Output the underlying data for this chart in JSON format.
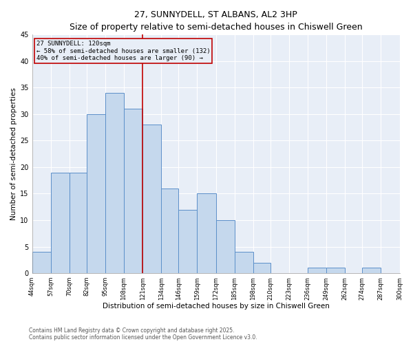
{
  "title": "27, SUNNYDELL, ST ALBANS, AL2 3HP",
  "subtitle": "Size of property relative to semi-detached houses in Chiswell Green",
  "xlabel": "Distribution of semi-detached houses by size in Chiswell Green",
  "ylabel": "Number of semi-detached properties",
  "bar_edges": [
    44,
    57,
    70,
    82,
    95,
    108,
    121,
    134,
    146,
    159,
    172,
    185,
    198,
    210,
    223,
    236,
    249,
    262,
    274,
    287,
    300
  ],
  "bar_heights": [
    4,
    19,
    19,
    30,
    34,
    31,
    28,
    16,
    12,
    15,
    10,
    4,
    2,
    0,
    0,
    1,
    1,
    0,
    1,
    0
  ],
  "tick_labels": [
    "44sqm",
    "57sqm",
    "70sqm",
    "82sqm",
    "95sqm",
    "108sqm",
    "121sqm",
    "134sqm",
    "146sqm",
    "159sqm",
    "172sqm",
    "185sqm",
    "198sqm",
    "210sqm",
    "223sqm",
    "236sqm",
    "249sqm",
    "262sqm",
    "274sqm",
    "287sqm",
    "300sqm"
  ],
  "bar_color": "#c5d8ed",
  "bar_edgecolor": "#5b8fc9",
  "vline_x": 121,
  "vline_color": "#c00000",
  "annotation_text": "27 SUNNYDELL: 120sqm\n← 58% of semi-detached houses are smaller (132)\n40% of semi-detached houses are larger (90) →",
  "annotation_box_color": "#c00000",
  "ylim": [
    0,
    45
  ],
  "yticks": [
    0,
    5,
    10,
    15,
    20,
    25,
    30,
    35,
    40,
    45
  ],
  "fig_background": "#ffffff",
  "ax_background": "#e8eef7",
  "grid_color": "#ffffff",
  "footer_line1": "Contains HM Land Registry data © Crown copyright and database right 2025.",
  "footer_line2": "Contains public sector information licensed under the Open Government Licence v3.0.",
  "title_fontsize": 9,
  "subtitle_fontsize": 8,
  "axis_label_fontsize": 7.5,
  "tick_fontsize": 6,
  "annotation_fontsize": 6.5,
  "footer_fontsize": 5.5
}
